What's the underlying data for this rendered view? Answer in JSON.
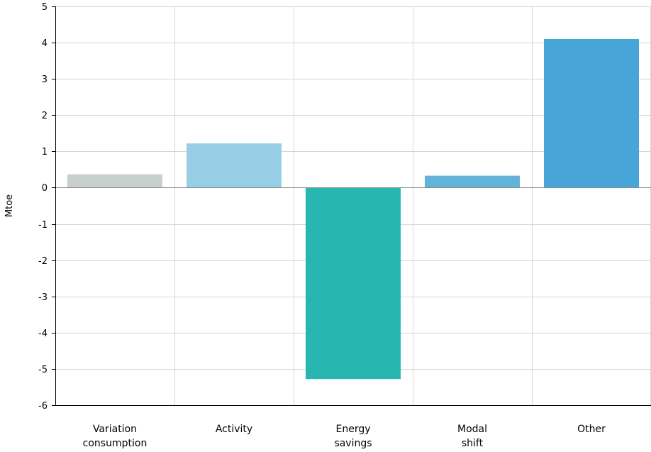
{
  "chart_data": {
    "type": "bar",
    "categories": [
      [
        "Variation",
        "consumption"
      ],
      [
        "Activity"
      ],
      [
        "Energy",
        "savings"
      ],
      [
        "Modal",
        "shift"
      ],
      [
        "Other"
      ]
    ],
    "values": [
      0.37,
      1.22,
      -5.28,
      0.33,
      4.1
    ],
    "colors": [
      "#c8d0cf",
      "#98cde6",
      "#27b6b0",
      "#63b2da",
      "#47a5d7"
    ],
    "xlabel": "",
    "ylabel": "Mtoe",
    "ylim": [
      -6,
      5
    ],
    "yticks": [
      5,
      4,
      3,
      2,
      1,
      0,
      -1,
      -2,
      -3,
      -4,
      -5,
      -6
    ],
    "grid": true,
    "legend": "none"
  }
}
